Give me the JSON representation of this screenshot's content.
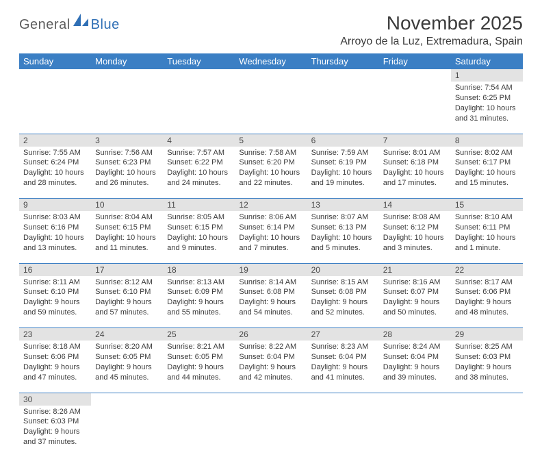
{
  "branding": {
    "text1": "General",
    "text2": "Blue",
    "logo_fill": "#2f6fb5",
    "text1_color": "#5e5e5e"
  },
  "title": "November 2025",
  "subtitle": "Arroyo de la Luz, Extremadura, Spain",
  "colors": {
    "header_bg": "#3b7fc4",
    "header_text": "#ffffff",
    "daynum_bg": "#e3e3e3",
    "daynum_text": "#4a4a4a",
    "body_text": "#3b3b3b",
    "rule": "#3b7fc4"
  },
  "weekdays": [
    "Sunday",
    "Monday",
    "Tuesday",
    "Wednesday",
    "Thursday",
    "Friday",
    "Saturday"
  ],
  "weeks": [
    [
      null,
      null,
      null,
      null,
      null,
      null,
      {
        "n": "1",
        "sr": "Sunrise: 7:54 AM",
        "ss": "Sunset: 6:25 PM",
        "d1": "Daylight: 10 hours",
        "d2": "and 31 minutes."
      }
    ],
    [
      {
        "n": "2",
        "sr": "Sunrise: 7:55 AM",
        "ss": "Sunset: 6:24 PM",
        "d1": "Daylight: 10 hours",
        "d2": "and 28 minutes."
      },
      {
        "n": "3",
        "sr": "Sunrise: 7:56 AM",
        "ss": "Sunset: 6:23 PM",
        "d1": "Daylight: 10 hours",
        "d2": "and 26 minutes."
      },
      {
        "n": "4",
        "sr": "Sunrise: 7:57 AM",
        "ss": "Sunset: 6:22 PM",
        "d1": "Daylight: 10 hours",
        "d2": "and 24 minutes."
      },
      {
        "n": "5",
        "sr": "Sunrise: 7:58 AM",
        "ss": "Sunset: 6:20 PM",
        "d1": "Daylight: 10 hours",
        "d2": "and 22 minutes."
      },
      {
        "n": "6",
        "sr": "Sunrise: 7:59 AM",
        "ss": "Sunset: 6:19 PM",
        "d1": "Daylight: 10 hours",
        "d2": "and 19 minutes."
      },
      {
        "n": "7",
        "sr": "Sunrise: 8:01 AM",
        "ss": "Sunset: 6:18 PM",
        "d1": "Daylight: 10 hours",
        "d2": "and 17 minutes."
      },
      {
        "n": "8",
        "sr": "Sunrise: 8:02 AM",
        "ss": "Sunset: 6:17 PM",
        "d1": "Daylight: 10 hours",
        "d2": "and 15 minutes."
      }
    ],
    [
      {
        "n": "9",
        "sr": "Sunrise: 8:03 AM",
        "ss": "Sunset: 6:16 PM",
        "d1": "Daylight: 10 hours",
        "d2": "and 13 minutes."
      },
      {
        "n": "10",
        "sr": "Sunrise: 8:04 AM",
        "ss": "Sunset: 6:15 PM",
        "d1": "Daylight: 10 hours",
        "d2": "and 11 minutes."
      },
      {
        "n": "11",
        "sr": "Sunrise: 8:05 AM",
        "ss": "Sunset: 6:15 PM",
        "d1": "Daylight: 10 hours",
        "d2": "and 9 minutes."
      },
      {
        "n": "12",
        "sr": "Sunrise: 8:06 AM",
        "ss": "Sunset: 6:14 PM",
        "d1": "Daylight: 10 hours",
        "d2": "and 7 minutes."
      },
      {
        "n": "13",
        "sr": "Sunrise: 8:07 AM",
        "ss": "Sunset: 6:13 PM",
        "d1": "Daylight: 10 hours",
        "d2": "and 5 minutes."
      },
      {
        "n": "14",
        "sr": "Sunrise: 8:08 AM",
        "ss": "Sunset: 6:12 PM",
        "d1": "Daylight: 10 hours",
        "d2": "and 3 minutes."
      },
      {
        "n": "15",
        "sr": "Sunrise: 8:10 AM",
        "ss": "Sunset: 6:11 PM",
        "d1": "Daylight: 10 hours",
        "d2": "and 1 minute."
      }
    ],
    [
      {
        "n": "16",
        "sr": "Sunrise: 8:11 AM",
        "ss": "Sunset: 6:10 PM",
        "d1": "Daylight: 9 hours",
        "d2": "and 59 minutes."
      },
      {
        "n": "17",
        "sr": "Sunrise: 8:12 AM",
        "ss": "Sunset: 6:10 PM",
        "d1": "Daylight: 9 hours",
        "d2": "and 57 minutes."
      },
      {
        "n": "18",
        "sr": "Sunrise: 8:13 AM",
        "ss": "Sunset: 6:09 PM",
        "d1": "Daylight: 9 hours",
        "d2": "and 55 minutes."
      },
      {
        "n": "19",
        "sr": "Sunrise: 8:14 AM",
        "ss": "Sunset: 6:08 PM",
        "d1": "Daylight: 9 hours",
        "d2": "and 54 minutes."
      },
      {
        "n": "20",
        "sr": "Sunrise: 8:15 AM",
        "ss": "Sunset: 6:08 PM",
        "d1": "Daylight: 9 hours",
        "d2": "and 52 minutes."
      },
      {
        "n": "21",
        "sr": "Sunrise: 8:16 AM",
        "ss": "Sunset: 6:07 PM",
        "d1": "Daylight: 9 hours",
        "d2": "and 50 minutes."
      },
      {
        "n": "22",
        "sr": "Sunrise: 8:17 AM",
        "ss": "Sunset: 6:06 PM",
        "d1": "Daylight: 9 hours",
        "d2": "and 48 minutes."
      }
    ],
    [
      {
        "n": "23",
        "sr": "Sunrise: 8:18 AM",
        "ss": "Sunset: 6:06 PM",
        "d1": "Daylight: 9 hours",
        "d2": "and 47 minutes."
      },
      {
        "n": "24",
        "sr": "Sunrise: 8:20 AM",
        "ss": "Sunset: 6:05 PM",
        "d1": "Daylight: 9 hours",
        "d2": "and 45 minutes."
      },
      {
        "n": "25",
        "sr": "Sunrise: 8:21 AM",
        "ss": "Sunset: 6:05 PM",
        "d1": "Daylight: 9 hours",
        "d2": "and 44 minutes."
      },
      {
        "n": "26",
        "sr": "Sunrise: 8:22 AM",
        "ss": "Sunset: 6:04 PM",
        "d1": "Daylight: 9 hours",
        "d2": "and 42 minutes."
      },
      {
        "n": "27",
        "sr": "Sunrise: 8:23 AM",
        "ss": "Sunset: 6:04 PM",
        "d1": "Daylight: 9 hours",
        "d2": "and 41 minutes."
      },
      {
        "n": "28",
        "sr": "Sunrise: 8:24 AM",
        "ss": "Sunset: 6:04 PM",
        "d1": "Daylight: 9 hours",
        "d2": "and 39 minutes."
      },
      {
        "n": "29",
        "sr": "Sunrise: 8:25 AM",
        "ss": "Sunset: 6:03 PM",
        "d1": "Daylight: 9 hours",
        "d2": "and 38 minutes."
      }
    ],
    [
      {
        "n": "30",
        "sr": "Sunrise: 8:26 AM",
        "ss": "Sunset: 6:03 PM",
        "d1": "Daylight: 9 hours",
        "d2": "and 37 minutes."
      },
      null,
      null,
      null,
      null,
      null,
      null
    ]
  ]
}
